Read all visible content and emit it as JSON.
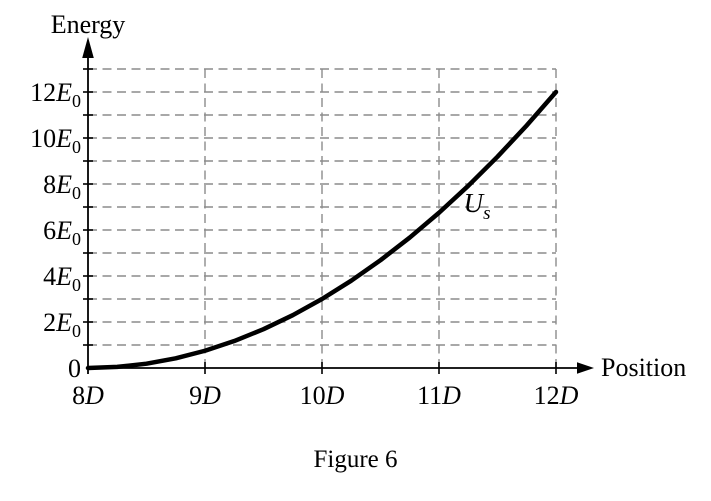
{
  "figure": {
    "caption": "Figure 6"
  },
  "chart_data": {
    "type": "line",
    "title": "",
    "xlabel": "Position",
    "ylabel": "Energy",
    "x_unit": "D",
    "y_unit": "E0",
    "xlim": [
      8,
      12
    ],
    "ylim": [
      0,
      13
    ],
    "grid": "dashed",
    "grid_color": "#8c8c8c",
    "axis_color": "#000000",
    "legend": "none",
    "x_gridlines": [
      9,
      10,
      11,
      12
    ],
    "y_gridlines": [
      1,
      2,
      3,
      4,
      5,
      6,
      7,
      8,
      9,
      10,
      11,
      12,
      13
    ],
    "x_ticks": [
      {
        "value": 8,
        "num": "8",
        "sym": "D",
        "sub": ""
      },
      {
        "value": 9,
        "num": "9",
        "sym": "D",
        "sub": ""
      },
      {
        "value": 10,
        "num": "10",
        "sym": "D",
        "sub": ""
      },
      {
        "value": 11,
        "num": "11",
        "sym": "D",
        "sub": ""
      },
      {
        "value": 12,
        "num": "12",
        "sym": "D",
        "sub": ""
      }
    ],
    "y_ticks": [
      {
        "value": 0,
        "num": "0",
        "sym": "",
        "sub": ""
      },
      {
        "value": 2,
        "num": "2",
        "sym": "E",
        "sub": "0"
      },
      {
        "value": 4,
        "num": "4",
        "sym": "E",
        "sub": "0"
      },
      {
        "value": 6,
        "num": "6",
        "sym": "E",
        "sub": "0"
      },
      {
        "value": 8,
        "num": "8",
        "sym": "E",
        "sub": "0"
      },
      {
        "value": 10,
        "num": "10",
        "sym": "E",
        "sub": "0"
      },
      {
        "value": 12,
        "num": "12",
        "sym": "E",
        "sub": "0"
      }
    ],
    "series": [
      {
        "name": "Us",
        "label": {
          "main": "U",
          "sub": "s"
        },
        "label_pos": {
          "x": 11.21,
          "y": 6.78
        },
        "color": "#000000",
        "width": 4.5,
        "x": [
          8,
          8.25,
          8.5,
          8.75,
          9,
          9.25,
          9.5,
          9.75,
          10,
          10.25,
          10.5,
          10.75,
          11,
          11.25,
          11.5,
          11.75,
          12
        ],
        "y": [
          0,
          0.047,
          0.188,
          0.422,
          0.75,
          1.172,
          1.688,
          2.297,
          3,
          3.797,
          4.688,
          5.672,
          6.75,
          7.922,
          9.188,
          10.547,
          12
        ]
      }
    ]
  }
}
